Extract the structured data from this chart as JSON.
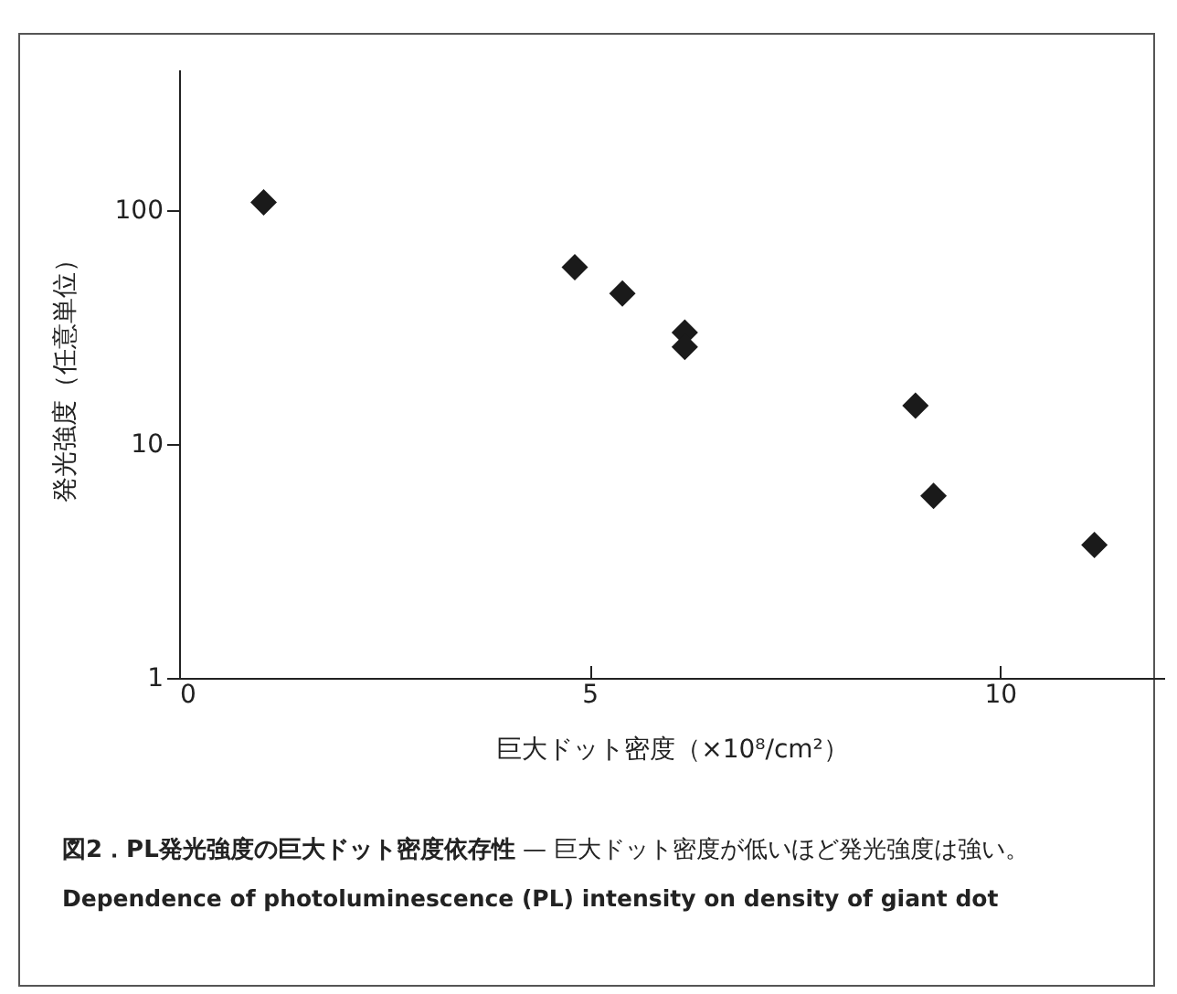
{
  "chart_data": {
    "type": "scatter",
    "title": "図2．PL発光強度の巨大ドット密度依存性",
    "subtitle": "— 巨大ドット密度が低いほど発光強度は強い。",
    "annotations": [
      "Dependence of photoluminescence (PL) intensity on density of giant dot"
    ],
    "xlabel": "巨大ドット密度（×10⁸/cm²）",
    "ylabel": "発光強度（任意単位）",
    "x": [
      1.03,
      4.82,
      5.4,
      6.16,
      6.16,
      8.97,
      9.19,
      11.15
    ],
    "series": [
      {
        "color": "#1a1a1a",
        "values": [
          108,
          57,
          44,
          30,
          26,
          14.6,
          6,
          3.7
        ]
      }
    ],
    "xlim": [
      0,
      12
    ],
    "xticks": [
      0,
      5,
      10
    ],
    "ylim": [
      1,
      400
    ],
    "yticks": [
      1,
      10,
      100
    ],
    "log": "y",
    "marker": "diamond"
  }
}
